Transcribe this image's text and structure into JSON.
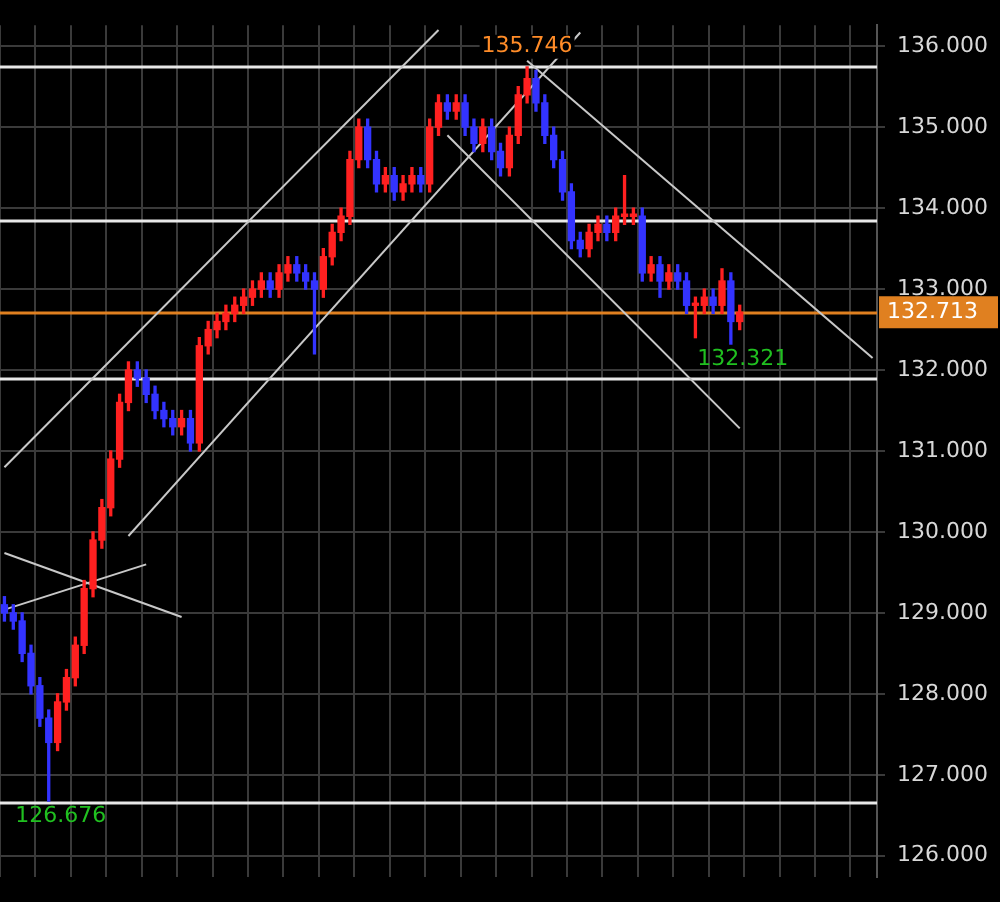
{
  "chart_data": {
    "type": "candlestick",
    "categories": [
      null,
      null,
      null,
      null,
      null,
      null,
      null,
      null,
      null,
      null,
      null,
      null,
      null,
      null,
      null,
      null,
      null,
      null,
      null,
      null,
      null,
      null,
      null,
      null,
      null,
      null,
      null,
      null,
      null,
      null,
      null,
      null,
      null,
      null,
      null,
      null,
      null,
      null,
      null,
      null,
      null,
      null,
      null,
      null,
      null,
      null,
      null,
      null,
      null,
      null,
      null,
      null,
      null,
      null,
      null,
      null,
      null,
      null,
      null,
      null,
      null,
      null,
      null,
      null,
      null,
      null,
      null,
      null,
      null,
      null,
      null,
      null,
      null,
      null,
      null,
      null,
      null,
      null,
      null,
      null,
      null,
      null,
      null,
      null,
      null,
      null,
      null,
      null,
      null,
      null,
      null,
      null,
      null,
      null,
      null,
      null,
      null,
      null,
      null
    ],
    "ohlc": [
      [
        129.1,
        129.2,
        128.9,
        129.0
      ],
      [
        129.0,
        129.1,
        128.8,
        128.9
      ],
      [
        128.9,
        129.0,
        128.4,
        128.5
      ],
      [
        128.5,
        128.6,
        128.0,
        128.1
      ],
      [
        128.1,
        128.2,
        127.6,
        127.7
      ],
      [
        127.7,
        127.8,
        126.676,
        127.4
      ],
      [
        127.4,
        128.0,
        127.3,
        127.9
      ],
      [
        127.9,
        128.3,
        127.8,
        128.2
      ],
      [
        128.2,
        128.7,
        128.1,
        128.6
      ],
      [
        128.6,
        129.4,
        128.5,
        129.3
      ],
      [
        129.3,
        130.0,
        129.2,
        129.9
      ],
      [
        129.9,
        130.4,
        129.8,
        130.3
      ],
      [
        130.3,
        131.0,
        130.2,
        130.9
      ],
      [
        130.9,
        131.7,
        130.8,
        131.6
      ],
      [
        131.6,
        132.1,
        131.5,
        132.0
      ],
      [
        132.0,
        132.1,
        131.8,
        131.9
      ],
      [
        131.9,
        132.0,
        131.6,
        131.7
      ],
      [
        131.7,
        131.8,
        131.4,
        131.5
      ],
      [
        131.5,
        131.6,
        131.3,
        131.4
      ],
      [
        131.4,
        131.5,
        131.2,
        131.3
      ],
      [
        131.3,
        131.5,
        131.2,
        131.4
      ],
      [
        131.4,
        131.5,
        131.0,
        131.1
      ],
      [
        131.1,
        132.4,
        131.0,
        132.3
      ],
      [
        132.3,
        132.6,
        132.2,
        132.5
      ],
      [
        132.5,
        132.7,
        132.4,
        132.6
      ],
      [
        132.6,
        132.8,
        132.5,
        132.7
      ],
      [
        132.7,
        132.9,
        132.6,
        132.8
      ],
      [
        132.8,
        133.0,
        132.7,
        132.9
      ],
      [
        132.9,
        133.1,
        132.8,
        133.0
      ],
      [
        133.0,
        133.2,
        132.9,
        133.1
      ],
      [
        133.1,
        133.2,
        132.9,
        133.0
      ],
      [
        133.0,
        133.3,
        132.9,
        133.2
      ],
      [
        133.2,
        133.4,
        133.1,
        133.3
      ],
      [
        133.3,
        133.4,
        133.1,
        133.2
      ],
      [
        133.2,
        133.3,
        133.0,
        133.1
      ],
      [
        133.1,
        133.2,
        132.2,
        133.0
      ],
      [
        133.0,
        133.5,
        132.9,
        133.4
      ],
      [
        133.4,
        133.8,
        133.3,
        133.7
      ],
      [
        133.7,
        134.0,
        133.6,
        133.9
      ],
      [
        133.9,
        134.7,
        133.8,
        134.6
      ],
      [
        134.6,
        135.1,
        134.5,
        135.0
      ],
      [
        135.0,
        135.1,
        134.5,
        134.6
      ],
      [
        134.6,
        134.7,
        134.2,
        134.3
      ],
      [
        134.3,
        134.5,
        134.2,
        134.4
      ],
      [
        134.4,
        134.5,
        134.1,
        134.2
      ],
      [
        134.2,
        134.4,
        134.1,
        134.3
      ],
      [
        134.3,
        134.5,
        134.2,
        134.4
      ],
      [
        134.4,
        134.5,
        134.2,
        134.3
      ],
      [
        134.3,
        135.1,
        134.2,
        135.0
      ],
      [
        135.0,
        135.4,
        134.9,
        135.3
      ],
      [
        135.3,
        135.4,
        135.1,
        135.2
      ],
      [
        135.2,
        135.4,
        135.1,
        135.3
      ],
      [
        135.3,
        135.4,
        134.9,
        135.0
      ],
      [
        135.0,
        135.1,
        134.7,
        134.8
      ],
      [
        134.8,
        135.1,
        134.7,
        135.0
      ],
      [
        135.0,
        135.1,
        134.6,
        134.7
      ],
      [
        134.7,
        134.8,
        134.4,
        134.5
      ],
      [
        134.5,
        135.0,
        134.4,
        134.9
      ],
      [
        134.9,
        135.5,
        134.8,
        135.4
      ],
      [
        135.4,
        135.746,
        135.3,
        135.6
      ],
      [
        135.6,
        135.7,
        135.2,
        135.3
      ],
      [
        135.3,
        135.4,
        134.8,
        134.9
      ],
      [
        134.9,
        135.0,
        134.5,
        134.6
      ],
      [
        134.6,
        134.7,
        134.1,
        134.2
      ],
      [
        134.2,
        134.3,
        133.5,
        133.6
      ],
      [
        133.6,
        133.7,
        133.4,
        133.5
      ],
      [
        133.5,
        133.8,
        133.4,
        133.7
      ],
      [
        133.7,
        133.9,
        133.6,
        133.8
      ],
      [
        133.8,
        133.9,
        133.6,
        133.7
      ],
      [
        133.7,
        134.0,
        133.6,
        133.9
      ],
      [
        133.9,
        134.4,
        133.8,
        133.9
      ],
      [
        133.9,
        134.0,
        133.8,
        133.9
      ],
      [
        133.9,
        134.0,
        133.1,
        133.2
      ],
      [
        133.2,
        133.4,
        133.1,
        133.3
      ],
      [
        133.3,
        133.4,
        132.9,
        133.1
      ],
      [
        133.1,
        133.3,
        133.0,
        133.2
      ],
      [
        133.2,
        133.3,
        133.0,
        133.1
      ],
      [
        133.1,
        133.2,
        132.7,
        132.8
      ],
      [
        132.8,
        132.9,
        132.4,
        132.8
      ],
      [
        132.8,
        133.0,
        132.7,
        132.9
      ],
      [
        132.9,
        133.0,
        132.7,
        132.8
      ],
      [
        132.8,
        133.25,
        132.7,
        133.1
      ],
      [
        133.1,
        133.2,
        132.321,
        132.6
      ],
      [
        132.6,
        132.8,
        132.5,
        132.713
      ],
      null,
      null,
      null,
      null,
      null,
      null,
      null,
      null,
      null,
      null,
      null,
      null,
      null,
      null,
      null
    ],
    "colors": [
      "#3333ff",
      "#3333ff",
      "#3333ff",
      "#3333ff",
      "#3333ff",
      "#3333ff",
      "#ff2020",
      "#ff2020",
      "#ff2020",
      "#ff2020",
      "#ff2020",
      "#ff2020",
      "#ff2020",
      "#ff2020",
      "#ff2020",
      "#3333ff",
      "#3333ff",
      "#3333ff",
      "#3333ff",
      "#3333ff",
      "#ff2020",
      "#3333ff",
      "#ff2020",
      "#ff2020",
      "#ff2020",
      "#ff2020",
      "#ff2020",
      "#ff2020",
      "#ff2020",
      "#ff2020",
      "#3333ff",
      "#ff2020",
      "#ff2020",
      "#3333ff",
      "#3333ff",
      "#3333ff",
      "#ff2020",
      "#ff2020",
      "#ff2020",
      "#ff2020",
      "#ff2020",
      "#3333ff",
      "#3333ff",
      "#ff2020",
      "#3333ff",
      "#ff2020",
      "#ff2020",
      "#3333ff",
      "#ff2020",
      "#ff2020",
      "#3333ff",
      "#ff2020",
      "#3333ff",
      "#3333ff",
      "#ff2020",
      "#3333ff",
      "#3333ff",
      "#ff2020",
      "#ff2020",
      "#ff2020",
      "#3333ff",
      "#3333ff",
      "#3333ff",
      "#3333ff",
      "#3333ff",
      "#3333ff",
      "#ff2020",
      "#ff2020",
      "#3333ff",
      "#ff2020",
      "#ff2020",
      "#ff2020",
      "#3333ff",
      "#ff2020",
      "#3333ff",
      "#ff2020",
      "#3333ff",
      "#3333ff",
      "#ff2020",
      "#ff2020",
      "#3333ff",
      "#ff2020",
      "#3333ff",
      "#ff2020",
      null,
      null,
      null,
      null,
      null,
      null,
      null,
      null,
      null,
      null,
      null,
      null,
      null,
      null,
      null
    ],
    "series": [
      {
        "type": "line",
        "color": "#c8c8c8",
        "values": [
          130.8,
          null,
          null,
          null,
          null,
          null,
          null,
          null,
          null,
          null,
          null,
          null,
          null,
          null,
          null,
          null,
          null,
          null,
          null,
          null,
          null,
          null,
          null,
          null,
          null,
          null,
          null,
          null,
          null,
          null,
          null,
          null,
          null,
          null,
          null,
          null,
          null,
          null,
          null,
          null,
          null,
          null,
          null,
          null,
          null,
          null,
          null,
          null,
          null,
          136.2,
          null,
          null,
          null,
          null,
          null,
          null,
          null,
          null,
          null,
          null,
          null,
          null,
          null,
          null,
          null,
          null,
          null,
          null,
          null,
          null,
          null,
          null,
          null,
          null,
          null,
          null,
          null,
          null,
          null,
          null,
          null,
          null,
          null,
          null,
          null,
          null,
          null,
          null,
          null,
          null,
          null,
          null,
          null,
          null,
          null,
          null,
          null,
          null,
          null
        ]
      },
      {
        "type": "line",
        "color": "#c8c8c8",
        "values": [
          null,
          null,
          null,
          null,
          null,
          null,
          null,
          null,
          null,
          null,
          null,
          null,
          null,
          null,
          129.95,
          null,
          null,
          null,
          null,
          null,
          null,
          null,
          null,
          null,
          null,
          null,
          null,
          null,
          null,
          null,
          null,
          null,
          null,
          null,
          null,
          null,
          null,
          null,
          null,
          null,
          null,
          null,
          null,
          null,
          null,
          null,
          null,
          null,
          null,
          null,
          null,
          null,
          null,
          null,
          null,
          null,
          null,
          null,
          null,
          null,
          null,
          null,
          null,
          null,
          null,
          136.17,
          null,
          null,
          null,
          null,
          null,
          null,
          null,
          null,
          null,
          null,
          null,
          null,
          null,
          null,
          null,
          null,
          null,
          null,
          null,
          null,
          null,
          null,
          null,
          null,
          null,
          null,
          null,
          null,
          null,
          null,
          null,
          null,
          null
        ]
      },
      {
        "type": "line",
        "color": "#c8c8c8",
        "values": [
          null,
          null,
          null,
          null,
          null,
          null,
          null,
          null,
          null,
          null,
          null,
          null,
          null,
          null,
          null,
          null,
          null,
          null,
          null,
          null,
          null,
          null,
          null,
          null,
          null,
          null,
          null,
          null,
          null,
          null,
          null,
          null,
          null,
          null,
          null,
          null,
          null,
          null,
          null,
          null,
          null,
          null,
          null,
          null,
          null,
          null,
          null,
          null,
          null,
          null,
          null,
          null,
          null,
          null,
          null,
          null,
          null,
          null,
          null,
          135.82,
          null,
          null,
          null,
          null,
          null,
          null,
          null,
          null,
          null,
          null,
          null,
          null,
          null,
          null,
          null,
          null,
          null,
          null,
          null,
          null,
          null,
          null,
          null,
          null,
          null,
          null,
          null,
          null,
          null,
          null,
          null,
          null,
          null,
          null,
          null,
          null,
          null,
          null,
          132.15
        ]
      },
      {
        "type": "line",
        "color": "#c8c8c8",
        "values": [
          null,
          null,
          null,
          null,
          null,
          null,
          null,
          null,
          null,
          null,
          null,
          null,
          null,
          null,
          null,
          null,
          null,
          null,
          null,
          null,
          null,
          null,
          null,
          null,
          null,
          null,
          null,
          null,
          null,
          null,
          null,
          null,
          null,
          null,
          null,
          null,
          null,
          null,
          null,
          null,
          null,
          null,
          null,
          null,
          null,
          null,
          null,
          null,
          null,
          null,
          134.9,
          null,
          null,
          null,
          null,
          null,
          null,
          null,
          null,
          null,
          null,
          null,
          null,
          null,
          null,
          null,
          null,
          null,
          null,
          null,
          null,
          null,
          null,
          null,
          null,
          null,
          null,
          null,
          null,
          null,
          null,
          null,
          null,
          131.28,
          null,
          null,
          null,
          null,
          null,
          null,
          null,
          null,
          null,
          null,
          null,
          null,
          null,
          null,
          null
        ]
      },
      {
        "type": "line",
        "color": "#c8c8c8",
        "values": [
          129.74,
          null,
          null,
          null,
          null,
          null,
          null,
          null,
          null,
          null,
          null,
          null,
          null,
          null,
          null,
          null,
          null,
          null,
          null,
          null,
          128.95,
          null,
          null,
          null,
          null,
          null,
          null,
          null,
          null,
          null,
          null,
          null,
          null,
          null,
          null,
          null,
          null,
          null,
          null,
          null,
          null,
          null,
          null,
          null,
          null,
          null,
          null,
          null,
          null,
          null,
          null,
          null,
          null,
          null,
          null,
          null,
          null,
          null,
          null,
          null,
          null,
          null,
          null,
          null,
          null,
          null,
          null,
          null,
          null,
          null,
          null,
          null,
          null,
          null,
          null,
          null,
          null,
          null,
          null,
          null,
          null,
          null,
          null,
          null,
          null,
          null,
          null,
          null,
          null,
          null,
          null,
          null,
          null,
          null,
          null,
          null,
          null,
          null,
          null
        ]
      },
      {
        "type": "line",
        "color": "#c8c8c8",
        "values": [
          129.04,
          null,
          null,
          null,
          null,
          null,
          null,
          null,
          null,
          null,
          null,
          null,
          null,
          null,
          null,
          null,
          129.6,
          null,
          null,
          null,
          null,
          null,
          null,
          null,
          null,
          null,
          null,
          null,
          null,
          null,
          null,
          null,
          null,
          null,
          null,
          null,
          null,
          null,
          null,
          null,
          null,
          null,
          null,
          null,
          null,
          null,
          null,
          null,
          null,
          null,
          null,
          null,
          null,
          null,
          null,
          null,
          null,
          null,
          null,
          null,
          null,
          null,
          null,
          null,
          null,
          null,
          null,
          null,
          null,
          null,
          null,
          null,
          null,
          null,
          null,
          null,
          null,
          null,
          null,
          null,
          null,
          null,
          null,
          null,
          null,
          null,
          null,
          null,
          null,
          null,
          null,
          null,
          null,
          null,
          null,
          null,
          null,
          null,
          null
        ]
      }
    ],
    "ylim": [
      125.74,
      136.26
    ],
    "yticks": [
      {
        "value": 126,
        "label": "126.000"
      },
      {
        "value": 127,
        "label": "127.000"
      },
      {
        "value": 128,
        "label": "128.000"
      },
      {
        "value": 129,
        "label": "129.000"
      },
      {
        "value": 130,
        "label": "130.000"
      },
      {
        "value": 131,
        "label": "131.000"
      },
      {
        "value": 132,
        "label": "132.000"
      },
      {
        "value": 133,
        "label": "133.000"
      },
      {
        "value": 134,
        "label": "134.000"
      },
      {
        "value": 135,
        "label": "135.000"
      },
      {
        "value": 136,
        "label": "136.000"
      }
    ],
    "ref_lines": [
      {
        "axis": "y",
        "value": 135.746,
        "color": "#e8e8e8"
      },
      {
        "axis": "y",
        "value": 133.85,
        "color": "#e8e8e8"
      },
      {
        "axis": "y",
        "value": 131.91,
        "color": "#e8e8e8"
      },
      {
        "axis": "y",
        "value": 126.676,
        "color": "#e8e8e8"
      },
      {
        "axis": "y",
        "value": 132.713,
        "label": "132.713",
        "color": "#e08020"
      }
    ],
    "annotations": [
      {
        "text": "135.746",
        "y": 135.746
      },
      "132.321",
      {
        "text": "126.676",
        "y": 126.676
      }
    ],
    "grid": true,
    "legend": false,
    "tick_labels": "y"
  }
}
